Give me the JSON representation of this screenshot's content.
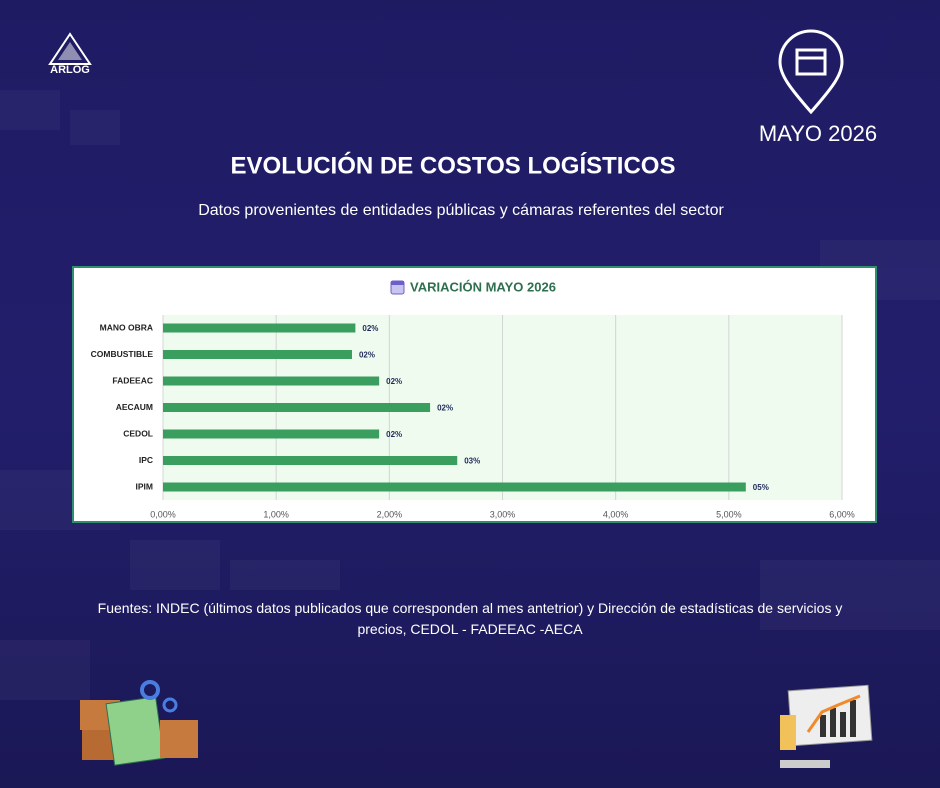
{
  "logo": "ARLOG",
  "date": "MAYO 2026",
  "title": "EVOLUCIÓN DE COSTOS LOGÍSTICOS",
  "subtitle": "Datos provenientes de entidades públicas y cámaras referentes del sector",
  "footer": "Fuentes: INDEC (últimos datos publicados que corresponden al mes antetrior) y Dirección de estadísticas de servicios y precios, CEDOL - FADEEAC -AECA",
  "chart_data": {
    "type": "hbar",
    "title": "VARIACIÓN MAYO 2026",
    "categories": [
      "MANO OBRA",
      "COMBUSTIBLE",
      "FADEEAC",
      "AECAUM",
      "CEDOL",
      "IPC",
      "IPIM"
    ],
    "values": [
      1.7,
      1.67,
      1.91,
      2.36,
      1.91,
      2.6,
      5.15
    ],
    "value_labels": [
      "02%",
      "02%",
      "02%",
      "02%",
      "02%",
      "03%",
      "05%"
    ],
    "color": "#3a9e5f",
    "xlim": [
      0,
      6
    ],
    "xticks": [
      {
        "value": 0,
        "label": "0,00%"
      },
      {
        "value": 1,
        "label": "1,00%"
      },
      {
        "value": 2,
        "label": "2,00%"
      },
      {
        "value": 3,
        "label": "3,00%"
      },
      {
        "value": 4,
        "label": "4,00%"
      },
      {
        "value": 5,
        "label": "5,00%"
      },
      {
        "value": 6,
        "label": "6,00%"
      }
    ],
    "grid": true
  }
}
